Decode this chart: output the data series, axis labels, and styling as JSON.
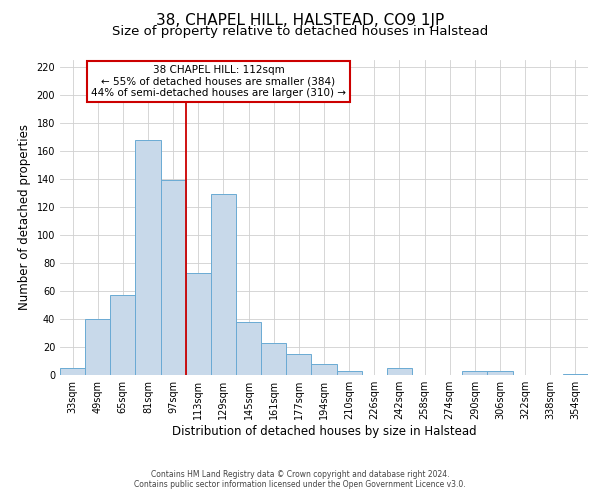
{
  "title": "38, CHAPEL HILL, HALSTEAD, CO9 1JP",
  "subtitle": "Size of property relative to detached houses in Halstead",
  "xlabel": "Distribution of detached houses by size in Halstead",
  "ylabel": "Number of detached properties",
  "bar_labels": [
    "33sqm",
    "49sqm",
    "65sqm",
    "81sqm",
    "97sqm",
    "113sqm",
    "129sqm",
    "145sqm",
    "161sqm",
    "177sqm",
    "194sqm",
    "210sqm",
    "226sqm",
    "242sqm",
    "258sqm",
    "274sqm",
    "290sqm",
    "306sqm",
    "322sqm",
    "338sqm",
    "354sqm"
  ],
  "bar_heights": [
    5,
    40,
    57,
    168,
    139,
    73,
    129,
    38,
    23,
    15,
    8,
    3,
    0,
    5,
    0,
    0,
    3,
    3,
    0,
    0,
    1
  ],
  "bar_color": "#c8d9ea",
  "bar_edge_color": "#6aaad4",
  "vline_color": "#cc0000",
  "annotation_title": "38 CHAPEL HILL: 112sqm",
  "annotation_line1": "← 55% of detached houses are smaller (384)",
  "annotation_line2": "44% of semi-detached houses are larger (310) →",
  "annotation_box_color": "#ffffff",
  "annotation_box_edge": "#cc0000",
  "ylim": [
    0,
    225
  ],
  "yticks": [
    0,
    20,
    40,
    60,
    80,
    100,
    120,
    140,
    160,
    180,
    200,
    220
  ],
  "footer1": "Contains HM Land Registry data © Crown copyright and database right 2024.",
  "footer2": "Contains public sector information licensed under the Open Government Licence v3.0.",
  "title_fontsize": 11,
  "subtitle_fontsize": 9.5,
  "tick_fontsize": 7,
  "label_fontsize": 8.5,
  "annotation_fontsize": 7.5,
  "footer_fontsize": 5.5
}
